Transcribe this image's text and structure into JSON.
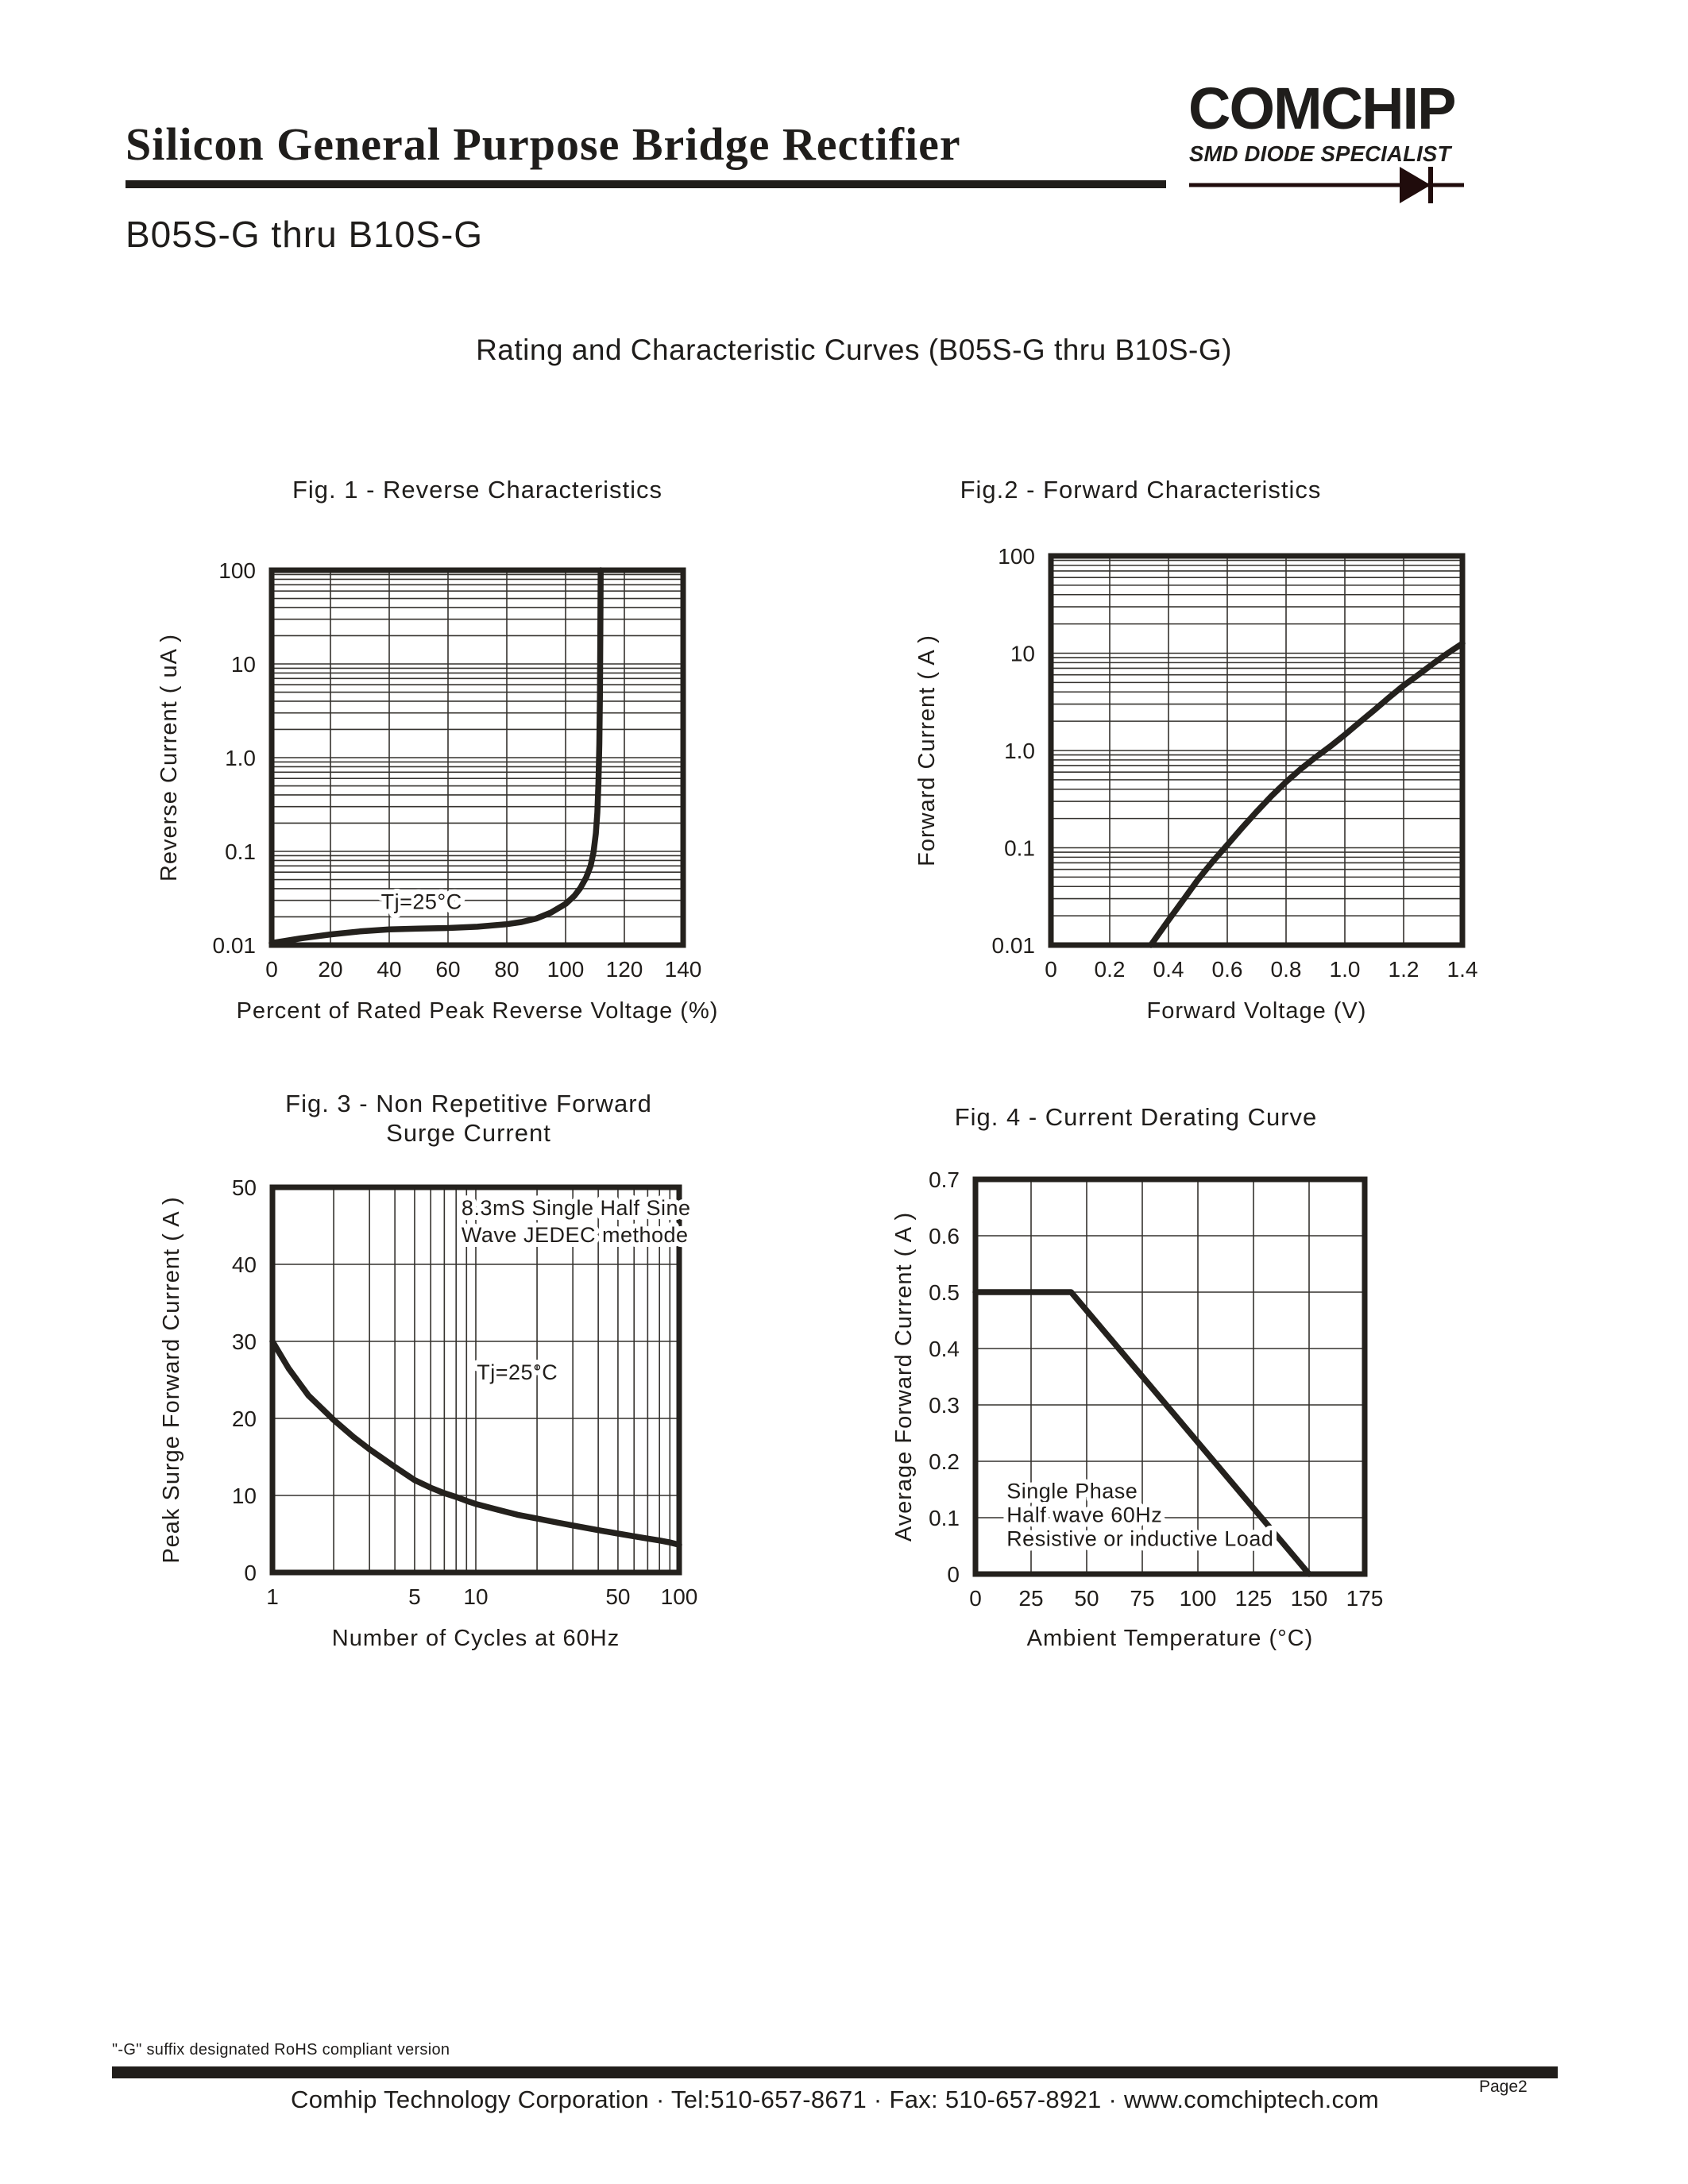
{
  "colors": {
    "ink": "#24211d",
    "grid": "#35322e",
    "diode": "#200c0c"
  },
  "header": {
    "title": "Silicon General Purpose Bridge Rectifier",
    "logo": {
      "brand": "COMCHIP",
      "tagline": "SMD DIODE SPECIALIST"
    },
    "part_range": "B05S-G thru B10S-G"
  },
  "section_title": "Rating and Characteristic Curves (B05S-G thru B10S-G)",
  "footer": {
    "note": "\"-G\" suffix designated RoHS compliant version",
    "company_line": "Comhip Technology Corporation · Tel:510-657-8671 ·  Fax: 510-657-8921 ·  www.comchiptech.com",
    "page": "Page2"
  },
  "chart_data": [
    {
      "id": "fig1",
      "type": "line",
      "title": "Fig. 1 -  Reverse Characteristics",
      "xlabel": "Percent of Rated Peak Reverse Voltage (%)",
      "ylabel": "Reverse Current ( uA )",
      "xscale": "linear",
      "yscale": "log",
      "xlim": [
        0,
        140
      ],
      "ylim": [
        0.01,
        100
      ],
      "grid": true,
      "legend": "none",
      "xticks": [
        0,
        20,
        40,
        60,
        80,
        100,
        120,
        140
      ],
      "xtick_labels": [
        "0",
        "20",
        "40",
        "60",
        "80",
        "100",
        "120",
        "140"
      ],
      "yticks": [
        100,
        10,
        1,
        0.1,
        0.01
      ],
      "ytick_labels": [
        "100",
        "10",
        "1.0",
        "0.1",
        "0.01"
      ],
      "annotations": [
        {
          "text": "Tj=25°C",
          "x": 51,
          "y": 0.029,
          "anchor": "middle",
          "lh": 32
        }
      ],
      "series": [
        {
          "name": "Tj=25°C",
          "points": [
            [
              0,
              0.0105
            ],
            [
              10,
              0.0118
            ],
            [
              20,
              0.013
            ],
            [
              30,
              0.014
            ],
            [
              40,
              0.0147
            ],
            [
              50,
              0.015
            ],
            [
              60,
              0.0152
            ],
            [
              70,
              0.0157
            ],
            [
              80,
              0.0167
            ],
            [
              85,
              0.0176
            ],
            [
              90,
              0.0192
            ],
            [
              95,
              0.0222
            ],
            [
              100,
              0.0275
            ],
            [
              103,
              0.0335
            ],
            [
              105,
              0.0405
            ],
            [
              107,
              0.0525
            ],
            [
              108.5,
              0.07
            ],
            [
              109.5,
              0.097
            ],
            [
              110.3,
              0.155
            ],
            [
              110.8,
              0.26
            ],
            [
              111.2,
              0.55
            ],
            [
              111.5,
              1.4
            ],
            [
              111.7,
              5
            ],
            [
              111.85,
              25
            ],
            [
              111.95,
              100
            ]
          ]
        }
      ]
    },
    {
      "id": "fig2",
      "type": "line",
      "title": "Fig.2 -  Forward Characteristics",
      "xlabel": "Forward Voltage (V)",
      "ylabel": "Forward Current ( A )",
      "xscale": "linear",
      "yscale": "log",
      "xlim": [
        0,
        1.4
      ],
      "ylim": [
        0.01,
        100
      ],
      "grid": true,
      "legend": "none",
      "xticks": [
        0,
        0.2,
        0.4,
        0.6,
        0.8,
        1.0,
        1.2,
        1.4
      ],
      "xtick_labels": [
        "0",
        "0.2",
        "0.4",
        "0.6",
        "0.8",
        "1.0",
        "1.2",
        "1.4"
      ],
      "yticks": [
        100,
        10,
        1,
        0.1,
        0.01
      ],
      "ytick_labels": [
        "100",
        "10",
        "1.0",
        "0.1",
        "0.01"
      ],
      "annotations": [],
      "series": [
        {
          "name": "forward current",
          "points": [
            [
              0.34,
              0.01
            ],
            [
              0.4,
              0.018
            ],
            [
              0.45,
              0.029
            ],
            [
              0.5,
              0.047
            ],
            [
              0.55,
              0.072
            ],
            [
              0.6,
              0.107
            ],
            [
              0.65,
              0.16
            ],
            [
              0.7,
              0.235
            ],
            [
              0.75,
              0.34
            ],
            [
              0.8,
              0.475
            ],
            [
              0.85,
              0.645
            ],
            [
              0.9,
              0.85
            ],
            [
              0.95,
              1.1
            ],
            [
              1.0,
              1.45
            ],
            [
              1.05,
              1.95
            ],
            [
              1.1,
              2.6
            ],
            [
              1.15,
              3.5
            ],
            [
              1.2,
              4.65
            ],
            [
              1.25,
              6.0
            ],
            [
              1.3,
              7.8
            ],
            [
              1.35,
              10.0
            ],
            [
              1.4,
              12.6
            ]
          ]
        }
      ]
    },
    {
      "id": "fig3",
      "type": "line",
      "title": "Fig. 3 -  Non Repetitive  Forward\nSurge Current",
      "xlabel": "Number of Cycles at 60Hz",
      "ylabel": "Peak Surge Forward Current ( A )",
      "xscale": "log",
      "yscale": "linear",
      "xlim": [
        1,
        100
      ],
      "ylim": [
        0,
        50
      ],
      "grid": true,
      "legend": "none",
      "xticks": [
        1,
        5,
        10,
        50,
        100
      ],
      "xtick_labels": [
        "1",
        "5",
        "10",
        "50",
        "100"
      ],
      "yticks": [
        0,
        10,
        20,
        30,
        40,
        50
      ],
      "ytick_labels": [
        "0",
        "10",
        "20",
        "30",
        "40",
        "50"
      ],
      "annotations": [
        {
          "text": "8.3mS Single Half Sine\nWave JEDEC methode",
          "x": 8.5,
          "y": 47.3,
          "anchor": "start",
          "lh": 34
        },
        {
          "text": "Tj=25°C",
          "x": 16,
          "y": 26,
          "anchor": "middle",
          "lh": 32
        }
      ],
      "series": [
        {
          "name": "Tj=25°C",
          "points": [
            [
              1,
              30
            ],
            [
              1.2,
              26.5
            ],
            [
              1.5,
              23
            ],
            [
              2,
              19.8
            ],
            [
              2.5,
              17.6
            ],
            [
              3,
              16
            ],
            [
              4,
              13.7
            ],
            [
              5,
              12
            ],
            [
              6,
              11
            ],
            [
              7,
              10.3
            ],
            [
              8,
              9.8
            ],
            [
              9,
              9.3
            ],
            [
              10,
              8.9
            ],
            [
              13,
              8.1
            ],
            [
              16,
              7.5
            ],
            [
              20,
              7.0
            ],
            [
              25,
              6.5
            ],
            [
              30,
              6.1
            ],
            [
              40,
              5.5
            ],
            [
              50,
              5.05
            ],
            [
              60,
              4.7
            ],
            [
              70,
              4.4
            ],
            [
              80,
              4.15
            ],
            [
              90,
              3.9
            ],
            [
              100,
              3.6
            ]
          ]
        }
      ]
    },
    {
      "id": "fig4",
      "type": "line",
      "title": "Fig. 4 - Current Derating Curve",
      "xlabel": "Ambient Temperature (°C)",
      "ylabel": "Average Forward Current ( A )",
      "xscale": "linear",
      "yscale": "linear",
      "xlim": [
        0,
        175
      ],
      "ylim": [
        0,
        0.7
      ],
      "grid": true,
      "legend": "none",
      "xticks": [
        0,
        25,
        50,
        75,
        100,
        125,
        150,
        175
      ],
      "xtick_labels": [
        "0",
        "25",
        "50",
        "75",
        "100",
        "125",
        "150",
        "175"
      ],
      "yticks": [
        0,
        0.1,
        0.2,
        0.3,
        0.4,
        0.5,
        0.6,
        0.7
      ],
      "ytick_labels": [
        "0",
        "0.1",
        "0.2",
        "0.3",
        "0.4",
        "0.5",
        "0.6",
        "0.7"
      ],
      "annotations": [
        {
          "text": "Single Phase\nHalf wave 60Hz\nResistive or inductive Load",
          "x": 14,
          "y": 0.147,
          "anchor": "start",
          "lh": 30
        }
      ],
      "series": [
        {
          "name": "average forward current",
          "points": [
            [
              0,
              0.5
            ],
            [
              43,
              0.5
            ],
            [
              150,
              0
            ]
          ]
        }
      ]
    }
  ]
}
